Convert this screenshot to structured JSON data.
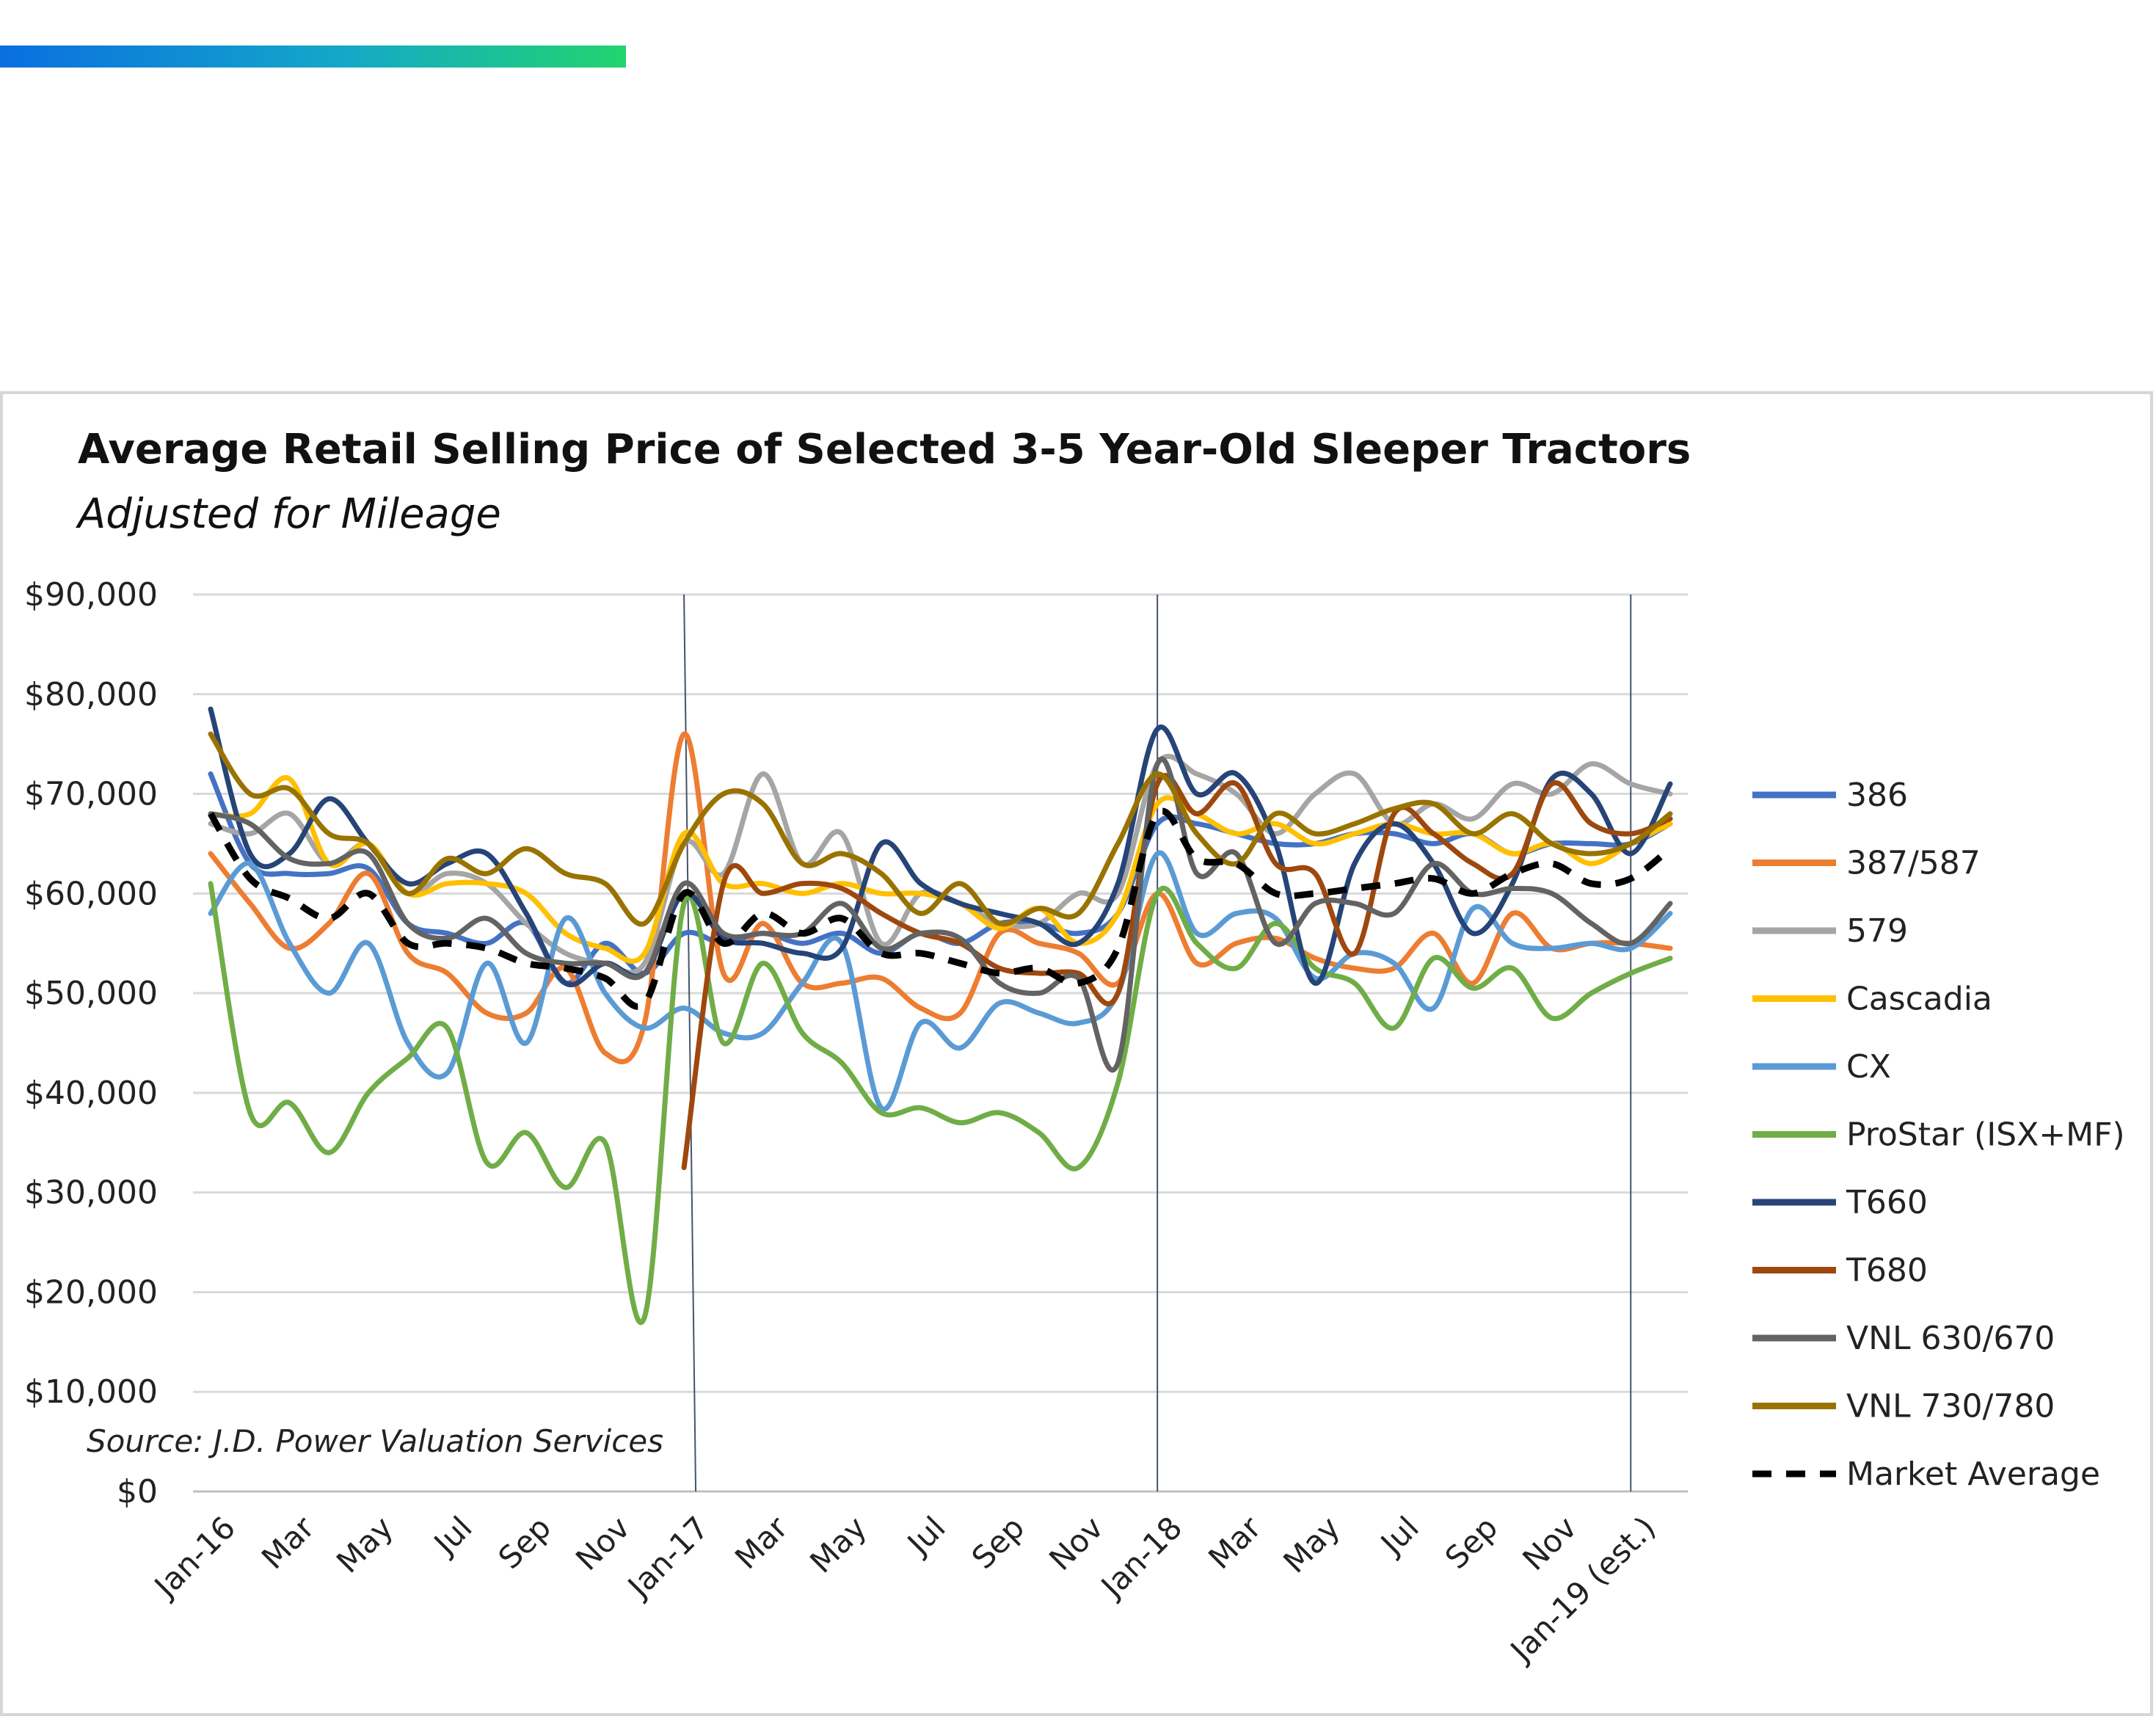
{
  "chart_data": {
    "type": "line",
    "title": "Average Retail Selling Price of Selected 3-5 Year-Old Sleeper Tractors",
    "subtitle": "Adjusted for Mileage",
    "source": "Source: J.D. Power Valuation Services",
    "ylim": [
      0,
      90000
    ],
    "yticks": [
      "$0",
      "$10,000",
      "$20,000",
      "$30,000",
      "$40,000",
      "$50,000",
      "$60,000",
      "$70,000",
      "$80,000",
      "$90,000"
    ],
    "x_labels": [
      "Jan-16",
      "Mar",
      "May",
      "Jul",
      "Sep",
      "Nov",
      "Jan-17",
      "Mar",
      "May",
      "Jul",
      "Sep",
      "Nov",
      "Jan-18",
      "Mar",
      "May",
      "Jul",
      "Sep",
      "Nov",
      "Jan-19 (est.)"
    ],
    "x_label_index": [
      0,
      2,
      4,
      6,
      8,
      10,
      12,
      14,
      16,
      18,
      20,
      22,
      24,
      26,
      28,
      30,
      32,
      34,
      36
    ],
    "num_points": 38,
    "vertical_markers": [
      12,
      24,
      36
    ],
    "grid": true,
    "legend_position": "right",
    "series": [
      {
        "name": "386",
        "color": "#4472c4",
        "dash": false,
        "values": [
          72000,
          63000,
          62000,
          62000,
          62500,
          57000,
          56000,
          55000,
          57000,
          51000,
          55000,
          52000,
          56000,
          55000,
          56000,
          55000,
          56000,
          54000,
          56000,
          55000,
          57000,
          57000,
          56000,
          58000,
          67000,
          67000,
          66000,
          65000,
          65000,
          66000,
          66000,
          65000,
          66000,
          64000,
          65000,
          65000,
          65000,
          67000
        ]
      },
      {
        "name": "387/587",
        "color": "#ed7d31",
        "dash": false,
        "values": [
          64000,
          59000,
          54500,
          57000,
          62000,
          54000,
          52000,
          48000,
          48000,
          52500,
          44000,
          47000,
          76000,
          52000,
          57000,
          51000,
          51000,
          51500,
          48500,
          48000,
          56000,
          55000,
          54000,
          51000,
          60000,
          53000,
          55000,
          55500,
          53500,
          52500,
          52500,
          56000,
          51000,
          58000,
          54500,
          55000,
          55000,
          54500
        ]
      },
      {
        "name": "579",
        "color": "#a5a5a5",
        "dash": false,
        "values": [
          67000,
          66000,
          68000,
          63000,
          65000,
          60000,
          62000,
          61000,
          57000,
          54000,
          53000,
          53000,
          65000,
          62000,
          72000,
          63000,
          66000,
          55000,
          60000,
          59000,
          57000,
          57000,
          60000,
          60000,
          73000,
          72000,
          70000,
          66000,
          70000,
          72000,
          67000,
          69000,
          67500,
          71000,
          70000,
          73000,
          71000,
          70000
        ]
      },
      {
        "name": "Cascadia",
        "color": "#ffc000",
        "dash": false,
        "values": [
          68000,
          68000,
          71500,
          63000,
          65000,
          60000,
          61000,
          61000,
          60000,
          56000,
          54500,
          54000,
          66000,
          61000,
          61000,
          60000,
          61000,
          60000,
          60000,
          59000,
          56500,
          58500,
          55000,
          58000,
          69000,
          68000,
          66000,
          67000,
          65000,
          66000,
          67000,
          66000,
          66000,
          64000,
          65000,
          63000,
          65000,
          67000
        ]
      },
      {
        "name": "CX",
        "color": "#5b9bd5",
        "dash": false,
        "values": [
          58000,
          63000,
          55000,
          50000,
          55000,
          45000,
          42000,
          53000,
          45000,
          57500,
          50000,
          46500,
          48500,
          46000,
          46000,
          51000,
          55000,
          38500,
          47000,
          44500,
          49000,
          48000,
          47000,
          50000,
          64000,
          56000,
          58000,
          57500,
          51500,
          54000,
          53000,
          48500,
          58500,
          55000,
          54500,
          55000,
          54500,
          58000
        ]
      },
      {
        "name": "ProStar (ISX+MF)",
        "color": "#70ad47",
        "dash": false,
        "values": [
          61000,
          38000,
          39000,
          34000,
          40000,
          43500,
          46500,
          33000,
          36000,
          30500,
          35000,
          17500,
          59000,
          45000,
          53000,
          46000,
          43000,
          38000,
          38500,
          37000,
          38000,
          36000,
          32500,
          41000,
          60000,
          55000,
          52500,
          57000,
          52500,
          51000,
          46500,
          53500,
          50500,
          52500,
          47500,
          50000,
          52000,
          53500
        ]
      },
      {
        "name": "T660",
        "color": "#264478",
        "dash": false,
        "values": [
          78500,
          64000,
          64000,
          69500,
          65000,
          61000,
          63000,
          64000,
          58000,
          51000,
          53000,
          52000,
          60000,
          55500,
          55000,
          54000,
          54500,
          65000,
          61000,
          59000,
          58000,
          57000,
          55000,
          61000,
          76500,
          70000,
          72000,
          65000,
          51000,
          63000,
          67000,
          63000,
          56000,
          61000,
          71500,
          70000,
          64000,
          71000
        ]
      },
      {
        "name": "T680",
        "color": "#9e480e",
        "dash": false,
        "values": [
          null,
          null,
          null,
          null,
          null,
          null,
          null,
          null,
          null,
          null,
          null,
          null,
          32500,
          61000,
          60000,
          61000,
          60500,
          58000,
          56000,
          55000,
          52500,
          52000,
          52000,
          50000,
          71000,
          68000,
          71000,
          63000,
          62000,
          54000,
          68000,
          66000,
          63000,
          62000,
          71000,
          67000,
          66000,
          67500
        ]
      },
      {
        "name": "VNL 630/670",
        "color": "#636363",
        "dash": false,
        "values": [
          68000,
          67000,
          63500,
          63000,
          64000,
          57000,
          55500,
          57500,
          54000,
          53000,
          53000,
          52000,
          61000,
          56000,
          56000,
          56000,
          59000,
          54500,
          56000,
          55500,
          51000,
          50000,
          51500,
          43000,
          73000,
          62000,
          64000,
          55000,
          59000,
          59000,
          58000,
          63000,
          60000,
          60500,
          60000,
          57000,
          55000,
          59000
        ]
      },
      {
        "name": "VNL 730/780",
        "color": "#997300",
        "dash": false,
        "values": [
          76000,
          70000,
          70500,
          66000,
          65000,
          60000,
          63500,
          62000,
          64500,
          62000,
          61000,
          57000,
          65000,
          70000,
          69000,
          63000,
          64000,
          62000,
          58000,
          61000,
          57000,
          58500,
          58000,
          65000,
          72000,
          66000,
          63000,
          68000,
          66000,
          67000,
          68500,
          69000,
          66000,
          68000,
          65000,
          64000,
          65000,
          68000
        ]
      },
      {
        "name": "Market Average",
        "color": "#000000",
        "dash": true,
        "values": [
          68000,
          61500,
          59500,
          57500,
          60000,
          55000,
          55000,
          54500,
          53000,
          52500,
          51500,
          49000,
          60000,
          55000,
          58000,
          56000,
          57500,
          54000,
          54000,
          53000,
          52000,
          52500,
          51000,
          54500,
          68000,
          63500,
          63000,
          60000,
          60000,
          60500,
          61000,
          61500,
          60000,
          62000,
          63000,
          61000,
          61500,
          64500
        ]
      }
    ]
  }
}
